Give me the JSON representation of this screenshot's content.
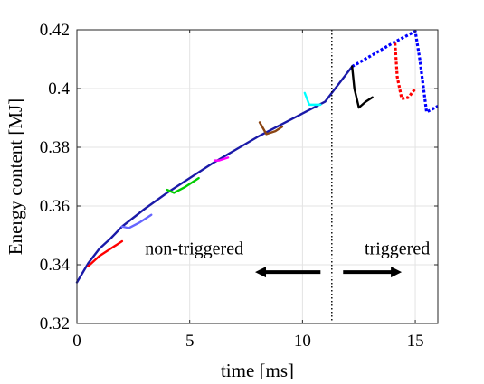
{
  "chart_data": {
    "type": "line",
    "xlabel": "time [ms]",
    "ylabel": "Energy content [MJ]",
    "xlim": [
      0,
      16
    ],
    "ylim": [
      0.32,
      0.42
    ],
    "xticks": [
      0,
      5,
      10,
      15
    ],
    "xtick_labels": [
      "0",
      "5",
      "10",
      "15"
    ],
    "yticks": [
      0.32,
      0.34,
      0.36,
      0.38,
      0.4,
      0.42
    ],
    "ytick_labels": [
      "0.32",
      "0.34",
      "0.36",
      "0.38",
      "0.4",
      "0.42"
    ],
    "grid": true,
    "legend": null,
    "trigger_time": 11.3,
    "annotations": [
      {
        "text": "non-triggered",
        "x": 5.2,
        "y": 0.3435,
        "arrow_from": [
          10.8,
          0.3375
        ],
        "arrow_to": [
          7.9,
          0.3375
        ]
      },
      {
        "text": "triggered",
        "x": 14.2,
        "y": 0.3435,
        "arrow_from": [
          11.8,
          0.3375
        ],
        "arrow_to": [
          14.4,
          0.3375
        ]
      }
    ],
    "series": [
      {
        "color": "#1a1aa8",
        "style": "solid",
        "x": [
          0,
          0.5,
          1,
          1.5,
          2,
          3,
          4,
          5,
          6,
          7,
          8,
          9,
          10,
          11,
          12.2
        ],
        "y": [
          0.334,
          0.3405,
          0.3455,
          0.349,
          0.353,
          0.359,
          0.3645,
          0.3695,
          0.3745,
          0.379,
          0.3835,
          0.3875,
          0.3915,
          0.3955,
          0.4075
        ]
      },
      {
        "color": "#0000ff",
        "style": "dotted",
        "x": [
          12.2,
          13,
          14,
          15,
          15.2,
          15.5,
          16
        ],
        "y": [
          0.4075,
          0.411,
          0.4155,
          0.4195,
          0.41,
          0.392,
          0.394
        ]
      },
      {
        "color": "#ff0000",
        "style": "solid",
        "x": [
          0.5,
          1,
          1.5,
          2
        ],
        "y": [
          0.3395,
          0.343,
          0.3455,
          0.348
        ]
      },
      {
        "color": "#6666ff",
        "style": "solid",
        "x": [
          2,
          2.3,
          2.8,
          3.3
        ],
        "y": [
          0.353,
          0.3525,
          0.3545,
          0.357
        ]
      },
      {
        "color": "#00cc00",
        "style": "solid",
        "x": [
          4,
          4.3,
          4.8,
          5.4
        ],
        "y": [
          0.3655,
          0.3645,
          0.3665,
          0.3695
        ]
      },
      {
        "color": "#ff00ff",
        "style": "solid",
        "x": [
          6.1,
          6.3,
          6.7
        ],
        "y": [
          0.3755,
          0.3755,
          0.3765
        ]
      },
      {
        "color": "#8b4513",
        "style": "solid",
        "x": [
          8.1,
          8.4,
          8.8,
          9.1
        ],
        "y": [
          0.3885,
          0.3845,
          0.3855,
          0.387
        ]
      },
      {
        "color": "#00ffff",
        "style": "solid",
        "x": [
          10.1,
          10.3,
          10.8
        ],
        "y": [
          0.3985,
          0.3945,
          0.3945
        ]
      },
      {
        "color": "#000000",
        "style": "solid",
        "x": [
          12.2,
          12.3,
          12.5,
          12.8,
          13.1
        ],
        "y": [
          0.4075,
          0.4,
          0.3935,
          0.3955,
          0.397
        ]
      },
      {
        "color": "#ff0000",
        "style": "dotted",
        "x": [
          14.1,
          14.2,
          14.4,
          14.7,
          15
        ],
        "y": [
          0.4155,
          0.404,
          0.3965,
          0.397,
          0.4
        ]
      }
    ]
  }
}
